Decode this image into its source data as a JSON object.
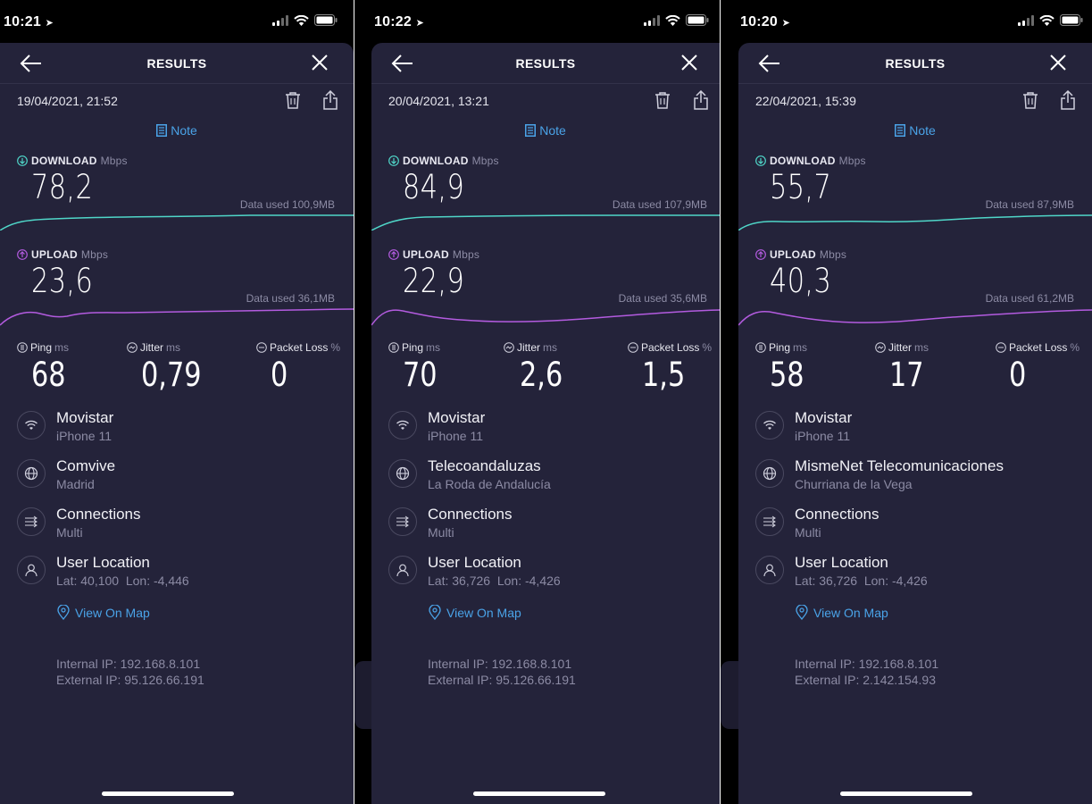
{
  "screens": [
    {
      "status_time": "10:21",
      "title": "RESULTS",
      "date": "19/04/2021, 21:52",
      "note_label": "Note",
      "download": {
        "label": "DOWNLOAD",
        "unit": "Mbps",
        "value": "78,2",
        "data_used": "Data used 100,9MB"
      },
      "upload": {
        "label": "UPLOAD",
        "unit": "Mbps",
        "value": "23,6",
        "data_used": "Data used 36,1MB"
      },
      "ping": {
        "label": "Ping",
        "unit": "ms",
        "value": "68"
      },
      "jitter": {
        "label": "Jitter",
        "unit": "ms",
        "value": "0,79"
      },
      "packet_loss": {
        "label": "Packet Loss",
        "unit": "%",
        "value": "0"
      },
      "carrier": {
        "title": "Movistar",
        "sub": "iPhone 11"
      },
      "server": {
        "title": "Comvive",
        "sub": "Madrid"
      },
      "connections": {
        "title": "Connections",
        "sub": "Multi"
      },
      "location": {
        "title": "User Location",
        "sub": "Lat: 40,100  Lon: -4,446"
      },
      "view_map": "View On Map",
      "internal_ip": "Internal IP: 192.168.8.101",
      "external_ip": "External IP: 95.126.66.191"
    },
    {
      "status_time": "10:22",
      "title": "RESULTS",
      "date": "20/04/2021, 13:21",
      "note_label": "Note",
      "download": {
        "label": "DOWNLOAD",
        "unit": "Mbps",
        "value": "84,9",
        "data_used": "Data used 107,9MB"
      },
      "upload": {
        "label": "UPLOAD",
        "unit": "Mbps",
        "value": "22,9",
        "data_used": "Data used 35,6MB"
      },
      "ping": {
        "label": "Ping",
        "unit": "ms",
        "value": "70"
      },
      "jitter": {
        "label": "Jitter",
        "unit": "ms",
        "value": "2,6"
      },
      "packet_loss": {
        "label": "Packet Loss",
        "unit": "%",
        "value": "1,5"
      },
      "carrier": {
        "title": "Movistar",
        "sub": "iPhone 11"
      },
      "server": {
        "title": "Telecoandaluzas",
        "sub": "La Roda de Andalucía"
      },
      "connections": {
        "title": "Connections",
        "sub": "Multi"
      },
      "location": {
        "title": "User Location",
        "sub": "Lat: 36,726  Lon: -4,426"
      },
      "view_map": "View On Map",
      "internal_ip": "Internal IP: 192.168.8.101",
      "external_ip": "External IP: 95.126.66.191"
    },
    {
      "status_time": "10:20",
      "title": "RESULTS",
      "date": "22/04/2021, 15:39",
      "note_label": "Note",
      "download": {
        "label": "DOWNLOAD",
        "unit": "Mbps",
        "value": "55,7",
        "data_used": "Data used 87,9MB"
      },
      "upload": {
        "label": "UPLOAD",
        "unit": "Mbps",
        "value": "40,3",
        "data_used": "Data used 61,2MB"
      },
      "ping": {
        "label": "Ping",
        "unit": "ms",
        "value": "58"
      },
      "jitter": {
        "label": "Jitter",
        "unit": "ms",
        "value": "17"
      },
      "packet_loss": {
        "label": "Packet Loss",
        "unit": "%",
        "value": "0"
      },
      "carrier": {
        "title": "Movistar",
        "sub": "iPhone 11"
      },
      "server": {
        "title": "MismeNet Telecomunicaciones",
        "sub": "Churriana de la Vega"
      },
      "connections": {
        "title": "Connections",
        "sub": "Multi"
      },
      "location": {
        "title": "User Location",
        "sub": "Lat: 36,726  Lon: -4,426"
      },
      "view_map": "View On Map",
      "internal_ip": "Internal IP: 192.168.8.101",
      "external_ip": "External IP: 2.142.154.93"
    }
  ],
  "colors": {
    "card_bg": "#24233a",
    "download_line": "#4fd6c8",
    "upload_line": "#b35bdf",
    "link": "#4aa3e8"
  },
  "icons": [
    "back-arrow-icon",
    "close-icon",
    "trash-icon",
    "share-icon",
    "note-icon",
    "download-icon",
    "upload-icon",
    "ping-icon",
    "jitter-icon",
    "packet-loss-icon",
    "wifi-icon",
    "globe-icon",
    "connections-icon",
    "user-icon",
    "map-pin-icon"
  ]
}
